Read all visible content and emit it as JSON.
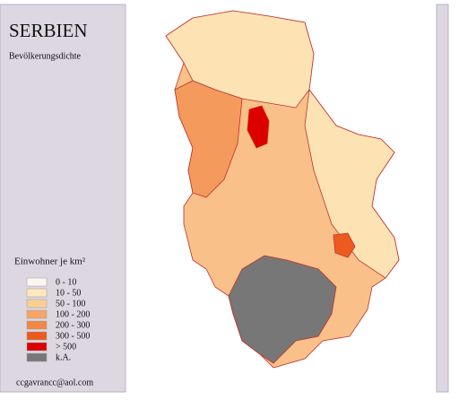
{
  "title": "SERBIEN",
  "subtitle": "Bevölkerungsdichte",
  "legend": {
    "title": "Einwohner je km²",
    "items": [
      {
        "label": "0 - 10",
        "color": "#fdf6ee"
      },
      {
        "label": "10 - 50",
        "color": "#fde9bd"
      },
      {
        "label": "50 - 100",
        "color": "#fbcf92"
      },
      {
        "label": "100 - 200",
        "color": "#f6a466"
      },
      {
        "label": "200 - 300",
        "color": "#f38745"
      },
      {
        "label": "300 - 500",
        "color": "#ec5b1d"
      },
      {
        "label": "> 500",
        "color": "#dc0000"
      },
      {
        "label": "k.A.",
        "color": "#777777"
      }
    ]
  },
  "footer": "ccgavrancc@aol.com"
}
